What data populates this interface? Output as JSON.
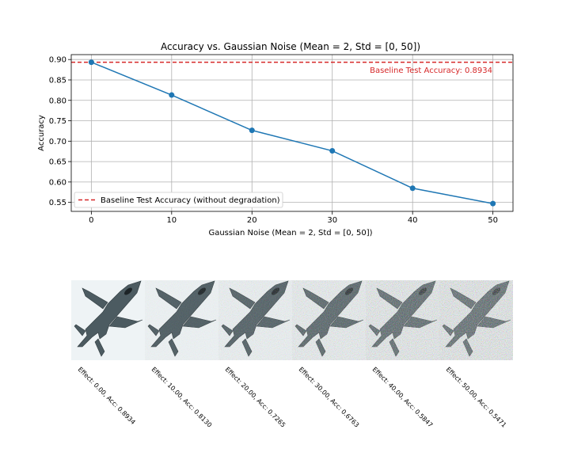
{
  "chart_data": {
    "type": "line",
    "title": "Accuracy vs. Gaussian Noise (Mean = 2, Std = [0, 50])",
    "xlabel": "Gaussian Noise (Mean = 2, Std = [0, 50])",
    "ylabel": "Accuracy",
    "x": [
      0,
      10,
      20,
      30,
      40,
      50
    ],
    "series": [
      {
        "values": [
          0.8934,
          0.813,
          0.7265,
          0.6763,
          0.5847,
          0.5471
        ],
        "color": "#1f77b4"
      }
    ],
    "xlim": [
      -2.5,
      52.5
    ],
    "ylim": [
      0.528,
      0.912
    ],
    "xticks": [
      "0",
      "10",
      "20",
      "30",
      "40",
      "50"
    ],
    "yticks": [
      "0.55",
      "0.60",
      "0.65",
      "0.70",
      "0.75",
      "0.80",
      "0.85",
      "0.90"
    ],
    "ytick_values": [
      0.55,
      0.6,
      0.65,
      0.7,
      0.75,
      0.8,
      0.85,
      0.9
    ],
    "grid": true,
    "baseline": {
      "value": 0.8934,
      "label": "Baseline Test Accuracy: 0.8934",
      "color": "#d62728",
      "style": "dashed"
    },
    "legend": {
      "placement": "lower-left",
      "entries": [
        "Baseline Test Accuracy (without degradation)"
      ]
    }
  },
  "thumbnails": {
    "subject": "fighter-jet",
    "noise_levels": [
      0,
      10,
      20,
      30,
      40,
      50
    ],
    "captions": [
      "Effect: 0.00, Acc: 0.8934",
      "Effect: 10.00, Acc: 0.8130",
      "Effect: 20.00, Acc: 0.7265",
      "Effect: 30.00, Acc: 0.6763",
      "Effect: 40.00, Acc: 0.5847",
      "Effect: 50.00, Acc: 0.5471"
    ]
  }
}
